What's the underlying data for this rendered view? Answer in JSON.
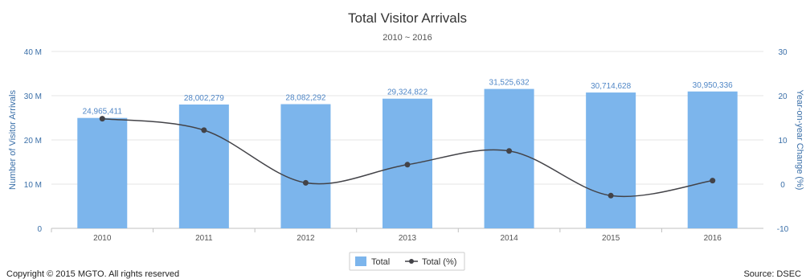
{
  "chart_data": {
    "type": "bar",
    "title": "Total Visitor Arrivals",
    "subtitle": "2010 ~ 2016",
    "categories": [
      "2010",
      "2011",
      "2012",
      "2013",
      "2014",
      "2015",
      "2016"
    ],
    "series": [
      {
        "name": "Total",
        "type": "bar",
        "axis": "left",
        "color": "#7cb5ec",
        "values": [
          24965411,
          28002279,
          28082292,
          29324822,
          31525632,
          30714628,
          30950336
        ],
        "labels": [
          "24,965,411",
          "28,002,279",
          "28,082,292",
          "29,324,822",
          "31,525,632",
          "30,714,628",
          "30,950,336"
        ]
      },
      {
        "name": "Total (%)",
        "type": "line",
        "axis": "right",
        "color": "#434348",
        "values": [
          14.8,
          12.2,
          0.3,
          4.4,
          7.5,
          -2.6,
          0.8
        ]
      }
    ],
    "y_left": {
      "label": "Number of Visitor Arrivals",
      "range": [
        0,
        40000000
      ],
      "ticks": [
        0,
        10000000,
        20000000,
        30000000,
        40000000
      ],
      "tick_labels": [
        "0",
        "10 M",
        "20 M",
        "30 M",
        "40 M"
      ]
    },
    "y_right": {
      "label": "Year-on-year Change (%)",
      "range": [
        -10,
        30
      ],
      "ticks": [
        -10,
        0,
        10,
        20,
        30
      ],
      "tick_labels": [
        "-10",
        "0",
        "10",
        "20",
        "30"
      ]
    },
    "grid": true,
    "legend": "bottom-center"
  },
  "footer": {
    "copyright": "Copyright © 2015 MGTO. All rights reserved",
    "source": "Source: DSEC"
  }
}
